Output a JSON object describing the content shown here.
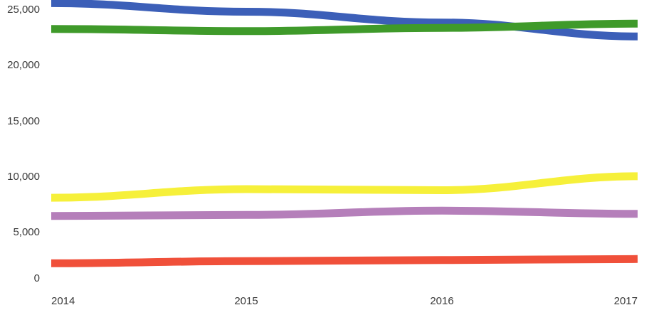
{
  "chart_data": {
    "type": "line",
    "title": "",
    "xlabel": "",
    "ylabel": "",
    "x": [
      "2014",
      "2015",
      "2016",
      "2017"
    ],
    "ylim": [
      0,
      25000
    ],
    "y_ticks": [
      "0",
      "5,000",
      "10,000",
      "15,000",
      "20,000",
      "25,000"
    ],
    "grid": false,
    "legend": "none",
    "series": [
      {
        "color": "#3c5fb8",
        "values": [
          25500,
          24700,
          23700,
          22400
        ]
      },
      {
        "color": "#3f9a2a",
        "values": [
          23100,
          22900,
          23200,
          23600
        ]
      },
      {
        "color": "#f6f03a",
        "values": [
          7400,
          8200,
          8100,
          9400
        ]
      },
      {
        "color": "#b57fba",
        "values": [
          5700,
          5800,
          6200,
          5900
        ]
      },
      {
        "color": "#f0503a",
        "values": [
          1300,
          1500,
          1600,
          1700
        ]
      }
    ]
  }
}
